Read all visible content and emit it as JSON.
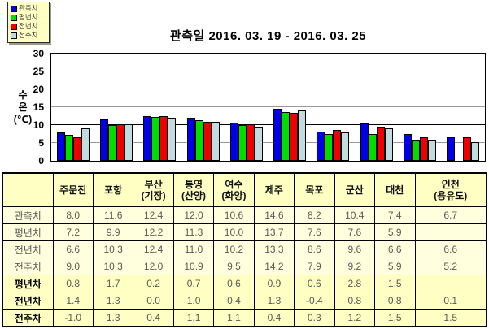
{
  "title": "관측일 2016. 03. 19 - 2016. 03. 25",
  "y_axis": {
    "title": "수\n온\n(℃)",
    "ticks": [
      0,
      5,
      10,
      15,
      20,
      25,
      30
    ],
    "max": 30,
    "major_grid_color": "#000000",
    "minor_grid_color": "#999999"
  },
  "legend": {
    "items": [
      {
        "label": "관측치",
        "color": "#0000e6"
      },
      {
        "label": "평년치",
        "color": "#00dd00"
      },
      {
        "label": "전년치",
        "color": "#ee0000"
      },
      {
        "label": "전주치",
        "color": "#c0dcdf"
      }
    ]
  },
  "chart_data": {
    "type": "bar",
    "title": "관측일 2016. 03. 19 - 2016. 03. 25",
    "xlabel": "",
    "ylabel": "수온(℃)",
    "ylim": [
      0,
      30
    ],
    "grid": true,
    "legend_position": "top-left",
    "categories": [
      "주문진",
      "포항",
      "부산(기장)",
      "통영(산양)",
      "여수(화양)",
      "제주",
      "목포",
      "군산",
      "대천",
      "인천(용유도)"
    ],
    "series": [
      {
        "name": "관측치",
        "color": "#0000e6",
        "values": [
          8.0,
          11.6,
          12.4,
          12.0,
          10.6,
          14.6,
          8.2,
          10.4,
          7.4,
          6.7
        ]
      },
      {
        "name": "평년치",
        "color": "#00dd00",
        "values": [
          7.2,
          9.9,
          12.2,
          11.3,
          10.0,
          13.7,
          7.6,
          7.6,
          5.9,
          null
        ]
      },
      {
        "name": "전년치",
        "color": "#ee0000",
        "values": [
          6.6,
          10.3,
          12.4,
          11.0,
          10.2,
          13.3,
          8.6,
          9.6,
          6.6,
          6.6
        ]
      },
      {
        "name": "전주치",
        "color": "#c0dcdf",
        "values": [
          9.0,
          10.3,
          12.0,
          10.9,
          9.5,
          14.2,
          7.9,
          9.2,
          5.9,
          5.2
        ]
      }
    ]
  },
  "table": {
    "col_headers": [
      "",
      "주문진",
      "포항",
      "부산\n(기장)",
      "통영\n(산양)",
      "여수\n(화양)",
      "제주",
      "목포",
      "군산",
      "대천",
      "인천\n(용유도)"
    ],
    "rows": [
      {
        "label": "관측치",
        "diff": false,
        "values": [
          "8.0",
          "11.6",
          "12.4",
          "12.0",
          "10.6",
          "14.6",
          "8.2",
          "10.4",
          "7.4",
          "6.7"
        ]
      },
      {
        "label": "평년치",
        "diff": false,
        "values": [
          "7.2",
          "9.9",
          "12.2",
          "11.3",
          "10.0",
          "13.7",
          "7.6",
          "7.6",
          "5.9",
          ""
        ]
      },
      {
        "label": "전년치",
        "diff": false,
        "values": [
          "6.6",
          "10.3",
          "12.4",
          "11.0",
          "10.2",
          "13.3",
          "8.6",
          "9.6",
          "6.6",
          "6.6"
        ]
      },
      {
        "label": "전주치",
        "diff": false,
        "values": [
          "9.0",
          "10.3",
          "12.0",
          "10.9",
          "9.5",
          "14.2",
          "7.9",
          "9.2",
          "5.9",
          "5.2"
        ]
      },
      {
        "label": "평년차",
        "diff": true,
        "values": [
          "0.8",
          "1.7",
          "0.2",
          "0.7",
          "0.6",
          "0.9",
          "0.6",
          "2.8",
          "1.5",
          ""
        ]
      },
      {
        "label": "전년차",
        "diff": true,
        "values": [
          "1.4",
          "1.3",
          "0.0",
          "1.0",
          "0.4",
          "1.3",
          "-0.4",
          "0.8",
          "0.8",
          "0.1"
        ]
      },
      {
        "label": "전주차",
        "diff": true,
        "values": [
          "-1.0",
          "1.3",
          "0.4",
          "1.1",
          "1.1",
          "0.4",
          "0.3",
          "1.2",
          "1.5",
          "1.5"
        ]
      }
    ]
  }
}
